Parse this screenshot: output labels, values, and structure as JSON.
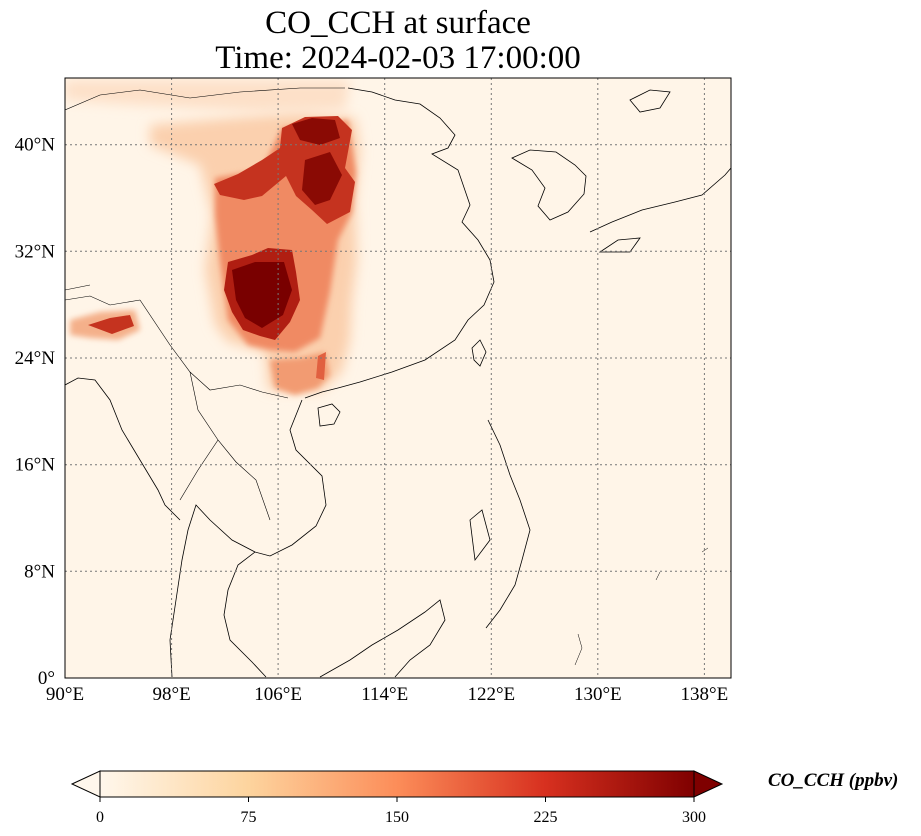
{
  "title": {
    "line1": "CO_CCH at surface",
    "line2": "Time: 2024-02-03 17:00:00"
  },
  "map": {
    "lon_range": [
      90,
      140
    ],
    "lat_range": [
      0,
      45
    ],
    "lon_ticks": [
      "90°E",
      "98°E",
      "106°E",
      "114°E",
      "122°E",
      "130°E",
      "138°E"
    ],
    "lat_ticks": [
      "0°",
      "8°N",
      "16°N",
      "24°N",
      "32°N",
      "40°N"
    ],
    "gridlines": true,
    "gridline_style": "dotted",
    "field_colormap": "OrRd"
  },
  "colorbar": {
    "label": "CO_CCH (ppbv)",
    "ticks": [
      "0",
      "75",
      "150",
      "225",
      "300"
    ],
    "min": 0,
    "max": 300,
    "extend": "both",
    "colors": [
      "#fff7ec",
      "#fdd49e",
      "#fc8d59",
      "#d7301f",
      "#7f0000"
    ]
  }
}
